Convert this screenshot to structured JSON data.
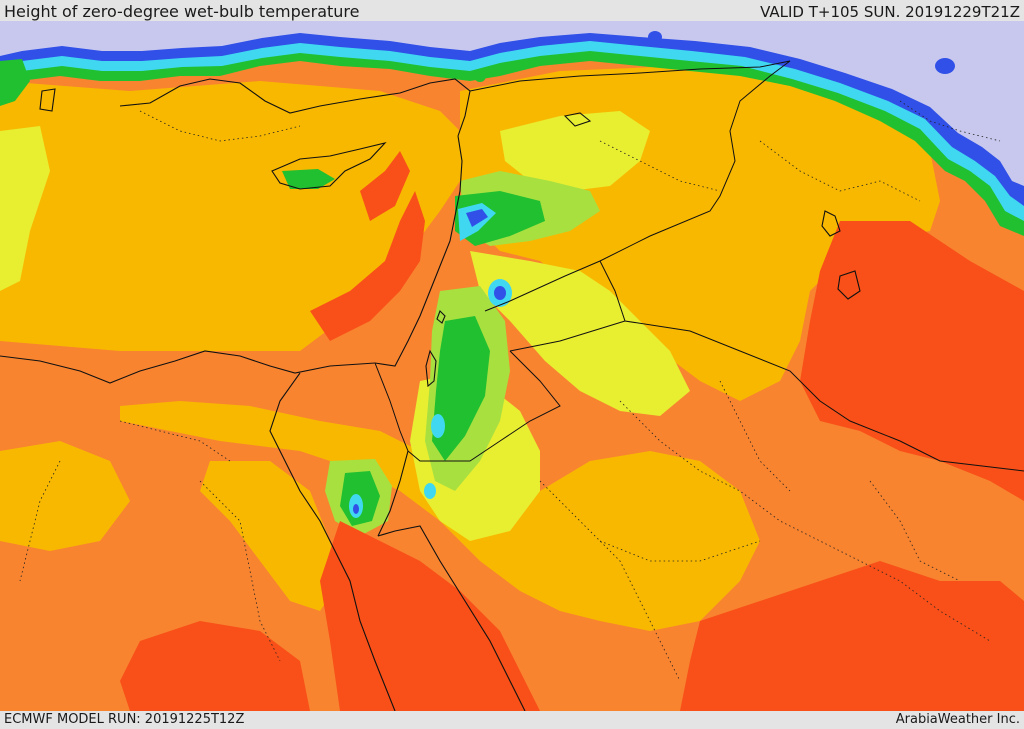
{
  "header": {
    "title": "Height of zero-degree wet-bulb temperature",
    "valid": "VALID T+105 SUN. 20191229T21Z"
  },
  "footer": {
    "model_run": "ECMWF MODEL RUN: 20191225T12Z",
    "credit": "ArabiaWeather Inc."
  },
  "palette": {
    "background_bar": "#e4e4e4",
    "sea_level_lavender": "#c8c8ee",
    "blue": "#3050e8",
    "cyan": "#40d8f0",
    "green": "#20c030",
    "light_green": "#a8e040",
    "yellow": "#e8ee30",
    "gold": "#f8b800",
    "orange": "#f88430",
    "red_orange": "#f85018",
    "boundary_line": "#111111"
  }
}
